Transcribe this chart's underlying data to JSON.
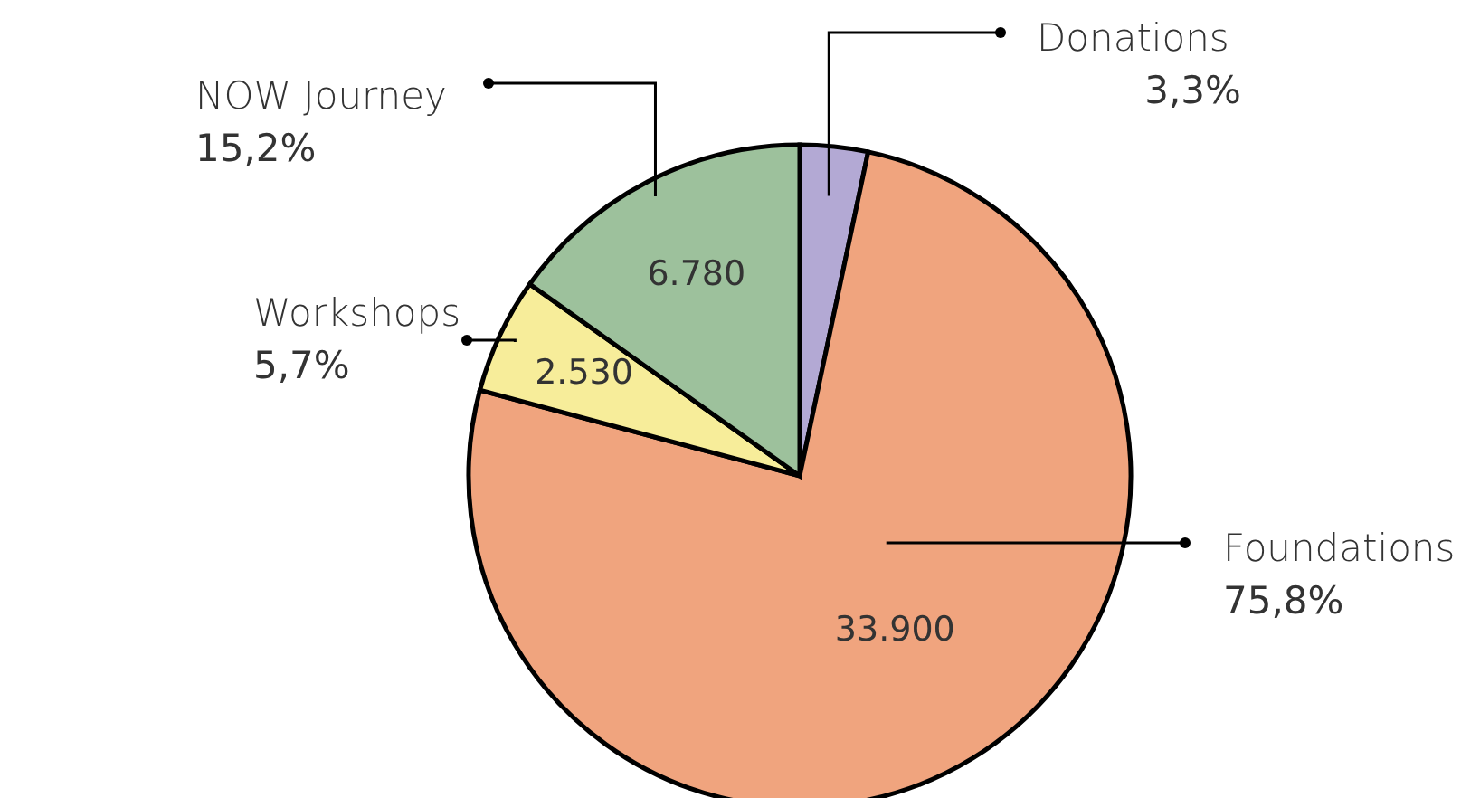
{
  "chart_data": {
    "type": "pie",
    "categories": [
      "Donations",
      "Foundations",
      "Workshops",
      "NOW Journey"
    ],
    "values": [
      1480,
      33900,
      2530,
      6780
    ],
    "colors": [
      "#b3a9d4",
      "#f0a47e",
      "#f7ed9a",
      "#9dc19c"
    ],
    "value_labels": [
      null,
      "33.900",
      "2.530",
      "6.780"
    ],
    "annotations": [
      "3,3%",
      "75,8%",
      "5,7%",
      "15,2%"
    ],
    "legend": false
  }
}
